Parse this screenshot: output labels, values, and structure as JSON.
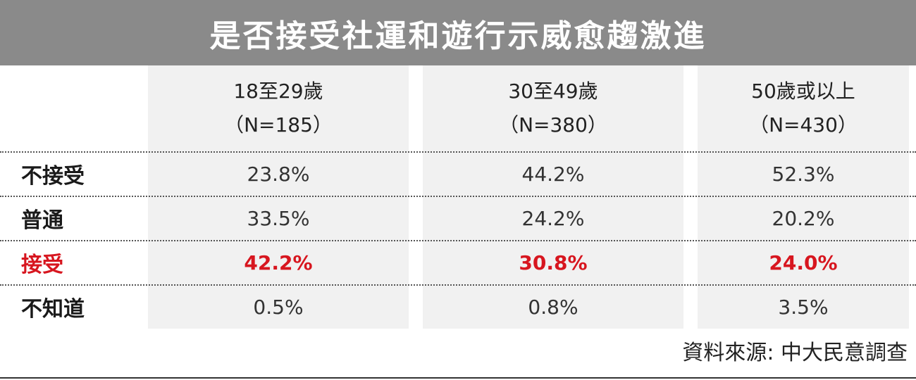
{
  "title": "是否接受社運和遊行示威愈趨激進",
  "colors": {
    "title_bg": "#8a8a8a",
    "highlight": "#d7161f",
    "column_shade": "#f1f1f1"
  },
  "columns": [
    {
      "label": "18至29歲",
      "n": "（N=185）"
    },
    {
      "label": "30至49歲",
      "n": "（N=380）"
    },
    {
      "label": "50歲或以上",
      "n": "（N=430）"
    }
  ],
  "rows": [
    {
      "label": "不接受",
      "values": [
        "23.8%",
        "44.2%",
        "52.3%"
      ],
      "highlight": false
    },
    {
      "label": "普通",
      "values": [
        "33.5%",
        "24.2%",
        "20.2%"
      ],
      "highlight": false
    },
    {
      "label": "接受",
      "values": [
        "42.2%",
        "30.8%",
        "24.0%"
      ],
      "highlight": true
    },
    {
      "label": "不知道",
      "values": [
        "0.5%",
        "0.8%",
        "3.5%"
      ],
      "highlight": false
    }
  ],
  "source": "資料來源: 中大民意調查",
  "chart_data": {
    "type": "table",
    "title": "是否接受社運和遊行示威愈趨激進",
    "categories": [
      "不接受",
      "普通",
      "接受",
      "不知道"
    ],
    "series": [
      {
        "name": "18至29歲 (N=185)",
        "values": [
          23.8,
          33.5,
          42.2,
          0.5
        ]
      },
      {
        "name": "30至49歲 (N=380)",
        "values": [
          44.2,
          24.2,
          30.8,
          0.8
        ]
      },
      {
        "name": "50歲或以上 (N=430)",
        "values": [
          52.3,
          20.2,
          24.0,
          3.5
        ]
      }
    ]
  }
}
